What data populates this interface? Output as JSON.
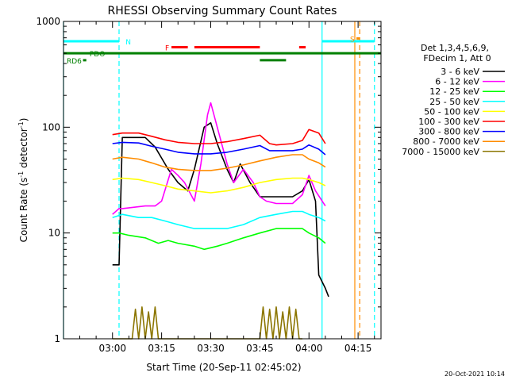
{
  "chart_data": {
    "type": "line",
    "title": "RHESSI Observing Summary Count Rates",
    "ylabel_main": "Count Rate (s",
    "ylabel_sup": "-1",
    "ylabel_tail": " detector",
    "ylabel_sup2": "-1",
    "ylabel_close": ")",
    "xlabel": "Start Time (20-Sep-11 02:45:02)",
    "yscale": "log",
    "ylim": [
      1,
      1000
    ],
    "xlim": [
      "02:45:02",
      "04:22:00"
    ],
    "xtick_labels": [
      {
        "time": "03:00",
        "label": "03:00"
      },
      {
        "time": "03:15",
        "label": "03:15"
      },
      {
        "time": "03:30",
        "label": "03:30"
      },
      {
        "time": "03:45",
        "label": "03:45"
      },
      {
        "time": "04:00",
        "label": "04:00"
      },
      {
        "time": "04:15",
        "label": "04:15"
      }
    ],
    "ytick_labels": [
      {
        "value": 1,
        "label": "1"
      },
      {
        "value": 10,
        "label": "10"
      },
      {
        "value": 100,
        "label": "100"
      },
      {
        "value": 1000,
        "label": "1000"
      }
    ],
    "legend": {
      "header1": "Det 1,3,4,5,6,9,",
      "header2": "FDecim 1, Att 0",
      "placement": "right"
    },
    "series": [
      {
        "name": "3 - 6 keV",
        "color": "#000000",
        "points": [
          [
            "03:00",
            5
          ],
          [
            "03:02",
            5
          ],
          [
            "03:03",
            80
          ],
          [
            "03:10",
            80
          ],
          [
            "03:13",
            65
          ],
          [
            "03:17",
            40
          ],
          [
            "03:20",
            30
          ],
          [
            "03:23",
            25
          ],
          [
            "03:25",
            40
          ],
          [
            "03:28",
            100
          ],
          [
            "03:30",
            110
          ],
          [
            "03:32",
            70
          ],
          [
            "03:35",
            40
          ],
          [
            "03:37",
            30
          ],
          [
            "03:39",
            45
          ],
          [
            "03:42",
            30
          ],
          [
            "03:45",
            22
          ],
          [
            "03:50",
            22
          ],
          [
            "03:55",
            22
          ],
          [
            "03:58",
            25
          ],
          [
            "04:00",
            32
          ],
          [
            "04:02",
            20
          ],
          [
            "04:03",
            4
          ],
          [
            "04:05",
            3
          ],
          [
            "04:06",
            2.5
          ]
        ]
      },
      {
        "name": "6 - 12 keV",
        "color": "#ff00ff",
        "points": [
          [
            "03:00",
            15
          ],
          [
            "03:02",
            17
          ],
          [
            "03:03",
            17
          ],
          [
            "03:10",
            18
          ],
          [
            "03:13",
            18
          ],
          [
            "03:15",
            20
          ],
          [
            "03:18",
            40
          ],
          [
            "03:20",
            35
          ],
          [
            "03:22",
            30
          ],
          [
            "03:25",
            20
          ],
          [
            "03:27",
            45
          ],
          [
            "03:29",
            130
          ],
          [
            "03:30",
            170
          ],
          [
            "03:32",
            100
          ],
          [
            "03:35",
            45
          ],
          [
            "03:37",
            30
          ],
          [
            "03:40",
            40
          ],
          [
            "03:43",
            30
          ],
          [
            "03:45",
            22
          ],
          [
            "03:47",
            20
          ],
          [
            "03:50",
            19
          ],
          [
            "03:55",
            19
          ],
          [
            "03:58",
            23
          ],
          [
            "04:00",
            35
          ],
          [
            "04:02",
            25
          ],
          [
            "04:05",
            18
          ]
        ]
      },
      {
        "name": "12 - 25 keV",
        "color": "#00ff00",
        "points": [
          [
            "03:00",
            10
          ],
          [
            "03:02",
            10
          ],
          [
            "03:05",
            9.5
          ],
          [
            "03:10",
            9
          ],
          [
            "03:14",
            8
          ],
          [
            "03:17",
            8.5
          ],
          [
            "03:20",
            8
          ],
          [
            "03:25",
            7.5
          ],
          [
            "03:28",
            7
          ],
          [
            "03:32",
            7.5
          ],
          [
            "03:35",
            8
          ],
          [
            "03:40",
            9
          ],
          [
            "03:45",
            10
          ],
          [
            "03:50",
            11
          ],
          [
            "03:55",
            11
          ],
          [
            "03:58",
            11
          ],
          [
            "04:00",
            10
          ],
          [
            "04:03",
            9
          ],
          [
            "04:05",
            8
          ]
        ]
      },
      {
        "name": "25 - 50 keV",
        "color": "#00ffff",
        "points": [
          [
            "03:00",
            14
          ],
          [
            "03:03",
            15
          ],
          [
            "03:08",
            14
          ],
          [
            "03:12",
            14
          ],
          [
            "03:16",
            13
          ],
          [
            "03:20",
            12
          ],
          [
            "03:25",
            11
          ],
          [
            "03:30",
            11
          ],
          [
            "03:35",
            11
          ],
          [
            "03:40",
            12
          ],
          [
            "03:45",
            14
          ],
          [
            "03:50",
            15
          ],
          [
            "03:55",
            16
          ],
          [
            "03:58",
            16
          ],
          [
            "04:00",
            15
          ],
          [
            "04:03",
            14
          ],
          [
            "04:05",
            13
          ]
        ]
      },
      {
        "name": "50 - 100 keV",
        "color": "#ffff00",
        "points": [
          [
            "03:00",
            32
          ],
          [
            "03:03",
            33
          ],
          [
            "03:08",
            32
          ],
          [
            "03:12",
            30
          ],
          [
            "03:16",
            28
          ],
          [
            "03:20",
            26
          ],
          [
            "03:25",
            25
          ],
          [
            "03:30",
            24
          ],
          [
            "03:35",
            25
          ],
          [
            "03:40",
            27
          ],
          [
            "03:45",
            30
          ],
          [
            "03:50",
            32
          ],
          [
            "03:55",
            33
          ],
          [
            "03:58",
            33
          ],
          [
            "04:00",
            32
          ],
          [
            "04:03",
            30
          ],
          [
            "04:05",
            28
          ]
        ]
      },
      {
        "name": "100 - 300 keV",
        "color": "#ff0000",
        "points": [
          [
            "03:00",
            85
          ],
          [
            "03:03",
            88
          ],
          [
            "03:08",
            88
          ],
          [
            "03:12",
            82
          ],
          [
            "03:16",
            76
          ],
          [
            "03:20",
            72
          ],
          [
            "03:25",
            70
          ],
          [
            "03:30",
            70
          ],
          [
            "03:35",
            73
          ],
          [
            "03:40",
            78
          ],
          [
            "03:45",
            84
          ],
          [
            "03:48",
            70
          ],
          [
            "03:50",
            68
          ],
          [
            "03:55",
            70
          ],
          [
            "03:58",
            75
          ],
          [
            "04:00",
            95
          ],
          [
            "04:03",
            88
          ],
          [
            "04:05",
            70
          ]
        ]
      },
      {
        "name": "300 - 800 keV",
        "color": "#0000ff",
        "points": [
          [
            "03:00",
            70
          ],
          [
            "03:03",
            72
          ],
          [
            "03:08",
            71
          ],
          [
            "03:12",
            66
          ],
          [
            "03:16",
            62
          ],
          [
            "03:20",
            58
          ],
          [
            "03:25",
            56
          ],
          [
            "03:30",
            56
          ],
          [
            "03:35",
            58
          ],
          [
            "03:40",
            62
          ],
          [
            "03:45",
            67
          ],
          [
            "03:48",
            60
          ],
          [
            "03:50",
            60
          ],
          [
            "03:55",
            60
          ],
          [
            "03:58",
            62
          ],
          [
            "04:00",
            68
          ],
          [
            "04:03",
            62
          ],
          [
            "04:05",
            55
          ]
        ]
      },
      {
        "name": "800 - 7000 keV",
        "color": "#ff8c00",
        "points": [
          [
            "03:00",
            50
          ],
          [
            "03:03",
            52
          ],
          [
            "03:08",
            50
          ],
          [
            "03:12",
            46
          ],
          [
            "03:16",
            42
          ],
          [
            "03:20",
            40
          ],
          [
            "03:25",
            39
          ],
          [
            "03:30",
            39
          ],
          [
            "03:35",
            41
          ],
          [
            "03:40",
            44
          ],
          [
            "03:45",
            48
          ],
          [
            "03:50",
            52
          ],
          [
            "03:55",
            55
          ],
          [
            "03:58",
            55
          ],
          [
            "04:00",
            50
          ],
          [
            "04:03",
            46
          ],
          [
            "04:05",
            42
          ]
        ]
      },
      {
        "name": "7000 - 15000 keV",
        "color": "#8b7500",
        "points": [
          [
            "03:00",
            1
          ],
          [
            "03:06",
            1
          ],
          [
            "03:07",
            1.9
          ],
          [
            "03:08",
            1
          ],
          [
            "03:09",
            2
          ],
          [
            "03:10",
            1
          ],
          [
            "03:11",
            1.8
          ],
          [
            "03:12",
            1
          ],
          [
            "03:13",
            2
          ],
          [
            "03:14",
            1
          ],
          [
            "03:45",
            1
          ],
          [
            "03:46",
            2
          ],
          [
            "03:47",
            1
          ],
          [
            "03:48",
            1.9
          ],
          [
            "03:49",
            1
          ],
          [
            "03:50",
            2
          ],
          [
            "03:51",
            1
          ],
          [
            "03:52",
            1.8
          ],
          [
            "03:53",
            1
          ],
          [
            "03:54",
            2
          ],
          [
            "03:55",
            1
          ],
          [
            "03:56",
            1.9
          ],
          [
            "03:57",
            1
          ],
          [
            "03:58",
            1
          ]
        ]
      }
    ],
    "state_bars": [
      {
        "label": "N",
        "color": "#00ffff",
        "level": 650,
        "segments": [
          [
            "02:45:02",
            "03:02:00"
          ],
          [
            "04:04:00",
            "04:20:00"
          ]
        ]
      },
      {
        "label": "F",
        "color": "#ff0000",
        "level": 570,
        "segments": [
          [
            "03:18:00",
            "03:23:00"
          ],
          [
            "03:25:00",
            "03:45:00"
          ],
          [
            "03:57:00",
            "03:59:00"
          ]
        ]
      },
      {
        "label": "S",
        "color": "#ff8c00",
        "level": 690,
        "segments": [
          [
            "04:14:30",
            "04:15:30"
          ]
        ]
      },
      {
        "label": "PDO",
        "color": "#008000",
        "level": 500,
        "segments": [
          [
            "02:45:02",
            "04:22:00"
          ]
        ]
      },
      {
        "label": "RD6",
        "color": "#008000",
        "level": 430,
        "segments": [
          [
            "02:51:00",
            "02:52:00"
          ],
          [
            "03:45:00",
            "03:53:00"
          ]
        ]
      }
    ],
    "vertical_lines": [
      {
        "time": "02:45:02",
        "color": "#00ffff",
        "style": "solid"
      },
      {
        "time": "03:02:00",
        "color": "#00ffff",
        "style": "dashed"
      },
      {
        "time": "04:04:00",
        "color": "#00ffff",
        "style": "solid"
      },
      {
        "time": "04:20:00",
        "color": "#00ffff",
        "style": "dashed"
      },
      {
        "time": "04:14:00",
        "color": "#ff8c00",
        "style": "solid"
      },
      {
        "time": "04:15:30",
        "color": "#ff8c00",
        "style": "dashed"
      }
    ],
    "footer": "20-Oct-2021 10:14"
  }
}
